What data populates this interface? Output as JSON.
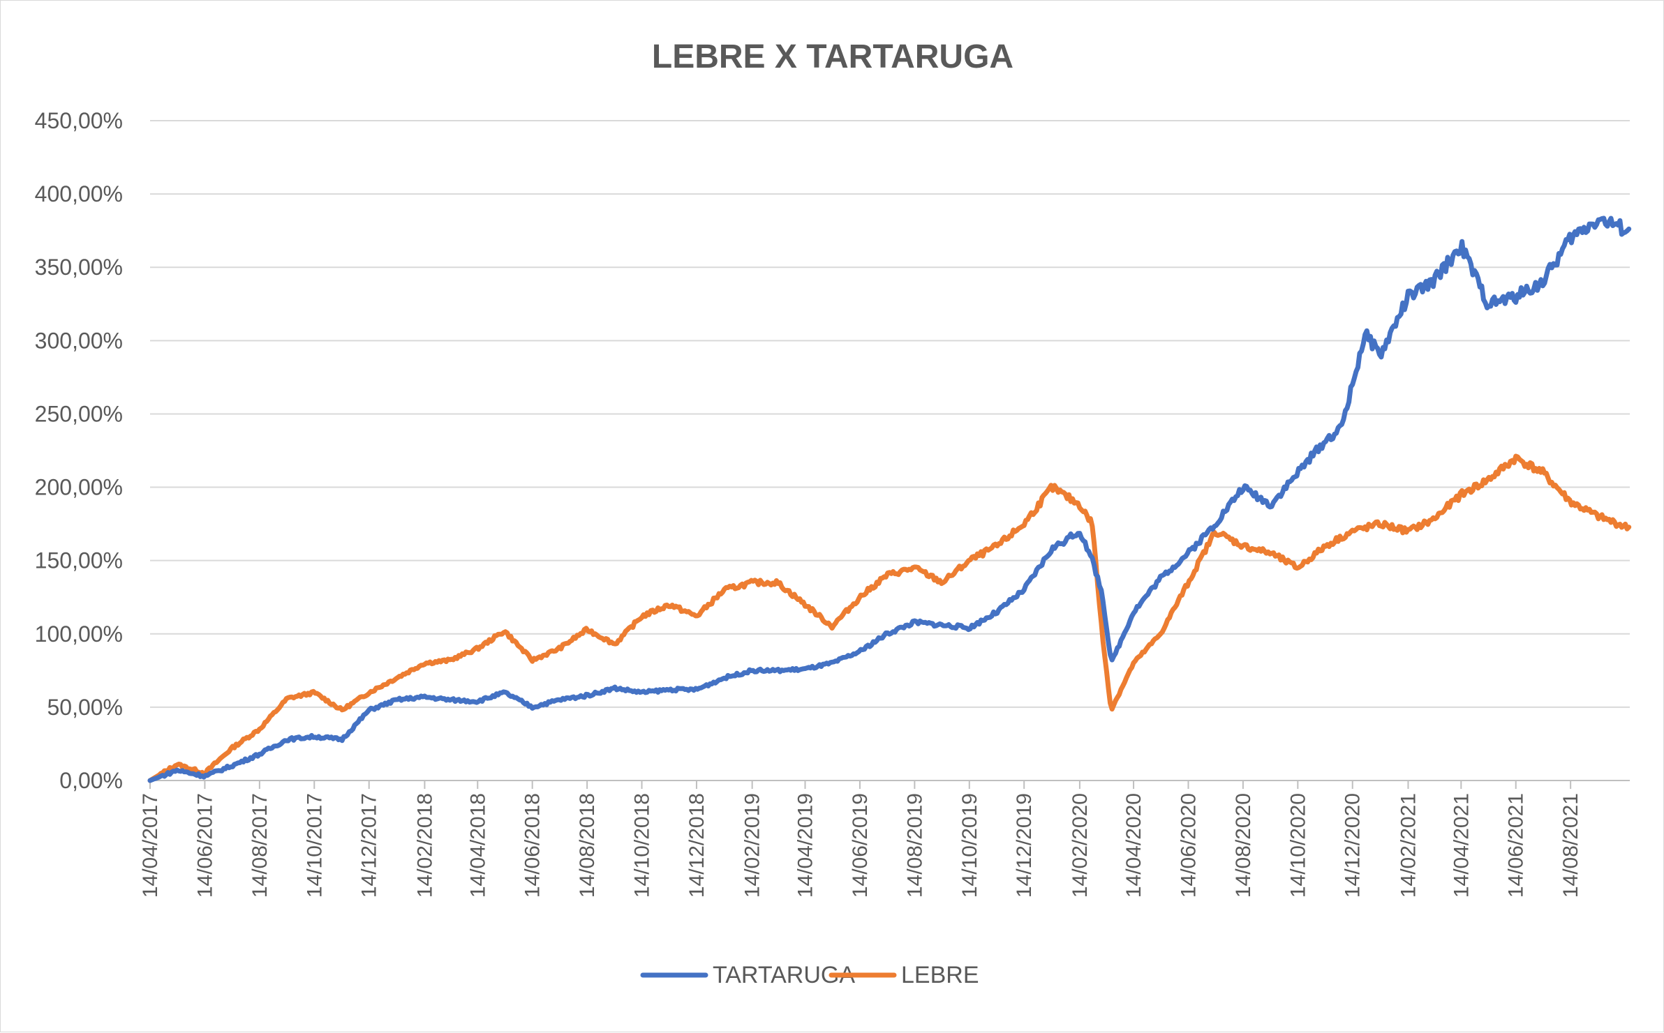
{
  "chart_data": {
    "type": "line",
    "title": "LEBRE X TARTARUGA",
    "xlabel": "",
    "ylabel": "",
    "y_tick_labels": [
      "0,00%",
      "50,00%",
      "100,00%",
      "150,00%",
      "200,00%",
      "250,00%",
      "300,00%",
      "350,00%",
      "400,00%",
      "450,00%"
    ],
    "ylim": [
      0,
      450
    ],
    "x_tick_labels": [
      "14/04/2017",
      "14/06/2017",
      "14/08/2017",
      "14/10/2017",
      "14/12/2017",
      "14/02/2018",
      "14/04/2018",
      "14/06/2018",
      "14/08/2018",
      "14/10/2018",
      "14/12/2018",
      "14/02/2019",
      "14/04/2019",
      "14/06/2019",
      "14/08/2019",
      "14/10/2019",
      "14/12/2019",
      "14/02/2020",
      "14/04/2020",
      "14/06/2020",
      "14/08/2020",
      "14/10/2020",
      "14/12/2020",
      "14/02/2021",
      "14/04/2021",
      "14/06/2021",
      "14/08/2021"
    ],
    "xlim": [
      "2017-04-14",
      "2021-10-19"
    ],
    "grid": true,
    "legend_position": "bottom",
    "series": [
      {
        "name": "TARTARUGA",
        "color": "#4472C4",
        "points": [
          [
            "2017-04-14",
            0
          ],
          [
            "2017-05-14",
            7
          ],
          [
            "2017-06-14",
            3
          ],
          [
            "2017-07-14",
            10
          ],
          [
            "2017-08-14",
            18
          ],
          [
            "2017-09-14",
            28
          ],
          [
            "2017-10-14",
            30
          ],
          [
            "2017-11-14",
            28
          ],
          [
            "2017-12-14",
            48
          ],
          [
            "2018-01-14",
            55
          ],
          [
            "2018-02-14",
            57
          ],
          [
            "2018-03-14",
            55
          ],
          [
            "2018-04-14",
            54
          ],
          [
            "2018-05-14",
            60
          ],
          [
            "2018-06-14",
            50
          ],
          [
            "2018-07-14",
            55
          ],
          [
            "2018-08-14",
            58
          ],
          [
            "2018-09-14",
            63
          ],
          [
            "2018-10-14",
            60
          ],
          [
            "2018-11-14",
            62
          ],
          [
            "2018-12-14",
            62
          ],
          [
            "2019-01-14",
            70
          ],
          [
            "2019-02-14",
            75
          ],
          [
            "2019-03-14",
            75
          ],
          [
            "2019-04-14",
            76
          ],
          [
            "2019-05-14",
            80
          ],
          [
            "2019-06-14",
            88
          ],
          [
            "2019-07-14",
            100
          ],
          [
            "2019-08-14",
            108
          ],
          [
            "2019-09-14",
            106
          ],
          [
            "2019-10-14",
            104
          ],
          [
            "2019-11-14",
            115
          ],
          [
            "2019-12-14",
            130
          ],
          [
            "2020-01-14",
            158
          ],
          [
            "2020-02-14",
            170
          ],
          [
            "2020-02-28",
            150
          ],
          [
            "2020-03-10",
            128
          ],
          [
            "2020-03-20",
            80
          ],
          [
            "2020-04-14",
            115
          ],
          [
            "2020-05-14",
            138
          ],
          [
            "2020-06-14",
            155
          ],
          [
            "2020-07-14",
            175
          ],
          [
            "2020-08-14",
            200
          ],
          [
            "2020-09-14",
            188
          ],
          [
            "2020-10-14",
            210
          ],
          [
            "2020-11-14",
            232
          ],
          [
            "2020-12-01",
            240
          ],
          [
            "2020-12-14",
            270
          ],
          [
            "2020-12-28",
            305
          ],
          [
            "2021-01-14",
            290
          ],
          [
            "2021-02-14",
            330
          ],
          [
            "2021-03-14",
            340
          ],
          [
            "2021-04-14",
            365
          ],
          [
            "2021-05-14",
            325
          ],
          [
            "2021-06-14",
            330
          ],
          [
            "2021-07-14",
            340
          ],
          [
            "2021-08-14",
            370
          ],
          [
            "2021-09-14",
            383
          ],
          [
            "2021-10-19",
            375
          ]
        ]
      },
      {
        "name": "LEBRE",
        "color": "#ED7D31",
        "points": [
          [
            "2017-04-14",
            0
          ],
          [
            "2017-05-14",
            11
          ],
          [
            "2017-06-14",
            5
          ],
          [
            "2017-07-14",
            22
          ],
          [
            "2017-08-14",
            35
          ],
          [
            "2017-09-14",
            56
          ],
          [
            "2017-10-14",
            60
          ],
          [
            "2017-11-14",
            48
          ],
          [
            "2017-12-14",
            60
          ],
          [
            "2018-01-14",
            70
          ],
          [
            "2018-02-14",
            80
          ],
          [
            "2018-03-14",
            82
          ],
          [
            "2018-04-14",
            90
          ],
          [
            "2018-05-14",
            102
          ],
          [
            "2018-06-14",
            82
          ],
          [
            "2018-07-14",
            90
          ],
          [
            "2018-08-14",
            103
          ],
          [
            "2018-09-14",
            93
          ],
          [
            "2018-10-14",
            112
          ],
          [
            "2018-11-14",
            120
          ],
          [
            "2018-12-14",
            112
          ],
          [
            "2019-01-14",
            130
          ],
          [
            "2019-02-14",
            135
          ],
          [
            "2019-03-14",
            135
          ],
          [
            "2019-04-14",
            120
          ],
          [
            "2019-05-14",
            105
          ],
          [
            "2019-06-14",
            125
          ],
          [
            "2019-07-14",
            140
          ],
          [
            "2019-08-14",
            145
          ],
          [
            "2019-09-14",
            135
          ],
          [
            "2019-10-14",
            150
          ],
          [
            "2019-11-14",
            160
          ],
          [
            "2019-12-14",
            175
          ],
          [
            "2020-01-14",
            200
          ],
          [
            "2020-02-14",
            188
          ],
          [
            "2020-02-28",
            175
          ],
          [
            "2020-03-10",
            100
          ],
          [
            "2020-03-20",
            48
          ],
          [
            "2020-04-14",
            80
          ],
          [
            "2020-05-14",
            100
          ],
          [
            "2020-06-14",
            135
          ],
          [
            "2020-07-14",
            170
          ],
          [
            "2020-08-14",
            160
          ],
          [
            "2020-09-14",
            155
          ],
          [
            "2020-10-14",
            145
          ],
          [
            "2020-11-14",
            160
          ],
          [
            "2020-12-14",
            170
          ],
          [
            "2021-01-14",
            175
          ],
          [
            "2021-02-14",
            170
          ],
          [
            "2021-03-14",
            178
          ],
          [
            "2021-04-14",
            195
          ],
          [
            "2021-05-14",
            205
          ],
          [
            "2021-06-14",
            220
          ],
          [
            "2021-07-14",
            210
          ],
          [
            "2021-08-14",
            190
          ],
          [
            "2021-09-14",
            180
          ],
          [
            "2021-10-19",
            172
          ]
        ]
      }
    ]
  }
}
